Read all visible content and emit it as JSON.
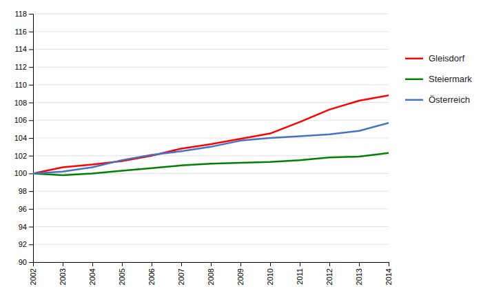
{
  "chart_data": {
    "type": "line",
    "x": [
      2002,
      2003,
      2004,
      2005,
      2006,
      2007,
      2008,
      2009,
      2010,
      2011,
      2012,
      2013,
      2014
    ],
    "xlim": [
      2002,
      2014
    ],
    "xticks": [
      2002,
      2003,
      2004,
      2005,
      2006,
      2007,
      2008,
      2009,
      2010,
      2011,
      2012,
      2013,
      2014
    ],
    "ylim": [
      90,
      118
    ],
    "yticks": [
      90,
      92,
      94,
      96,
      98,
      100,
      102,
      104,
      106,
      108,
      110,
      112,
      114,
      116,
      118
    ],
    "grid": "y",
    "legend": "right",
    "series": [
      {
        "name": "Gleisdorf",
        "color": "#ff0000",
        "values": [
          100.0,
          100.7,
          101.0,
          101.4,
          102.0,
          102.8,
          103.3,
          103.9,
          104.5,
          105.8,
          107.2,
          108.2,
          108.8
        ]
      },
      {
        "name": "Steiermark",
        "color": "#008000",
        "values": [
          100.0,
          99.8,
          100.0,
          100.3,
          100.6,
          100.9,
          101.1,
          101.2,
          101.3,
          101.5,
          101.8,
          101.9,
          102.3
        ]
      },
      {
        "name": "Österreich",
        "color": "#4472c4",
        "values": [
          100.0,
          100.2,
          100.7,
          101.5,
          102.1,
          102.5,
          103.0,
          103.7,
          104.0,
          104.2,
          104.4,
          104.8,
          105.7
        ]
      }
    ]
  }
}
